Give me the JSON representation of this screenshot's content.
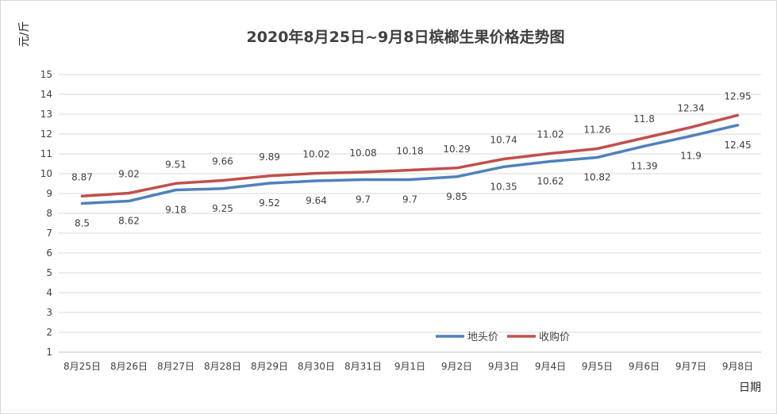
{
  "chart_data": {
    "type": "line",
    "title": "2020年8月25日~9月8日槟榔生果价格走势图",
    "ylabel": "元/斤",
    "xlabel": "日期",
    "ylim": [
      1,
      15
    ],
    "yticks": [
      1,
      2,
      3,
      4,
      5,
      6,
      7,
      8,
      9,
      10,
      11,
      12,
      13,
      14,
      15
    ],
    "grid": true,
    "legend_position": "bottom-right",
    "categories": [
      "8月25日",
      "8月26日",
      "8月27日",
      "8月28日",
      "8月29日",
      "8月30日",
      "8月31日",
      "9月1日",
      "9月2日",
      "9月3日",
      "9月4日",
      "9月5日",
      "9月6日",
      "9月7日",
      "9月8日"
    ],
    "series": [
      {
        "name": "地头价",
        "color": "#4f81bd",
        "values": [
          8.5,
          8.62,
          9.18,
          9.25,
          9.52,
          9.64,
          9.7,
          9.7,
          9.85,
          10.35,
          10.62,
          10.82,
          11.39,
          11.9,
          12.45
        ],
        "labels": [
          "8.5",
          "8.62",
          "9.18",
          "9.25",
          "9.52",
          "9.64",
          "9.7",
          "9.7",
          "9.85",
          "10.35",
          "10.62",
          "10.82",
          "11.39",
          "11.9",
          "12.45"
        ]
      },
      {
        "name": "收购价",
        "color": "#c0504d",
        "values": [
          8.87,
          9.02,
          9.51,
          9.66,
          9.89,
          10.02,
          10.08,
          10.18,
          10.29,
          10.74,
          11.02,
          11.26,
          11.8,
          12.34,
          12.95
        ],
        "labels": [
          "8.87",
          "9.02",
          "9.51",
          "9.66",
          "9.89",
          "10.02",
          "10.08",
          "10.18",
          "10.29",
          "10.74",
          "11.02",
          "11.26",
          "11.8",
          "12.34",
          "12.95"
        ]
      }
    ]
  }
}
